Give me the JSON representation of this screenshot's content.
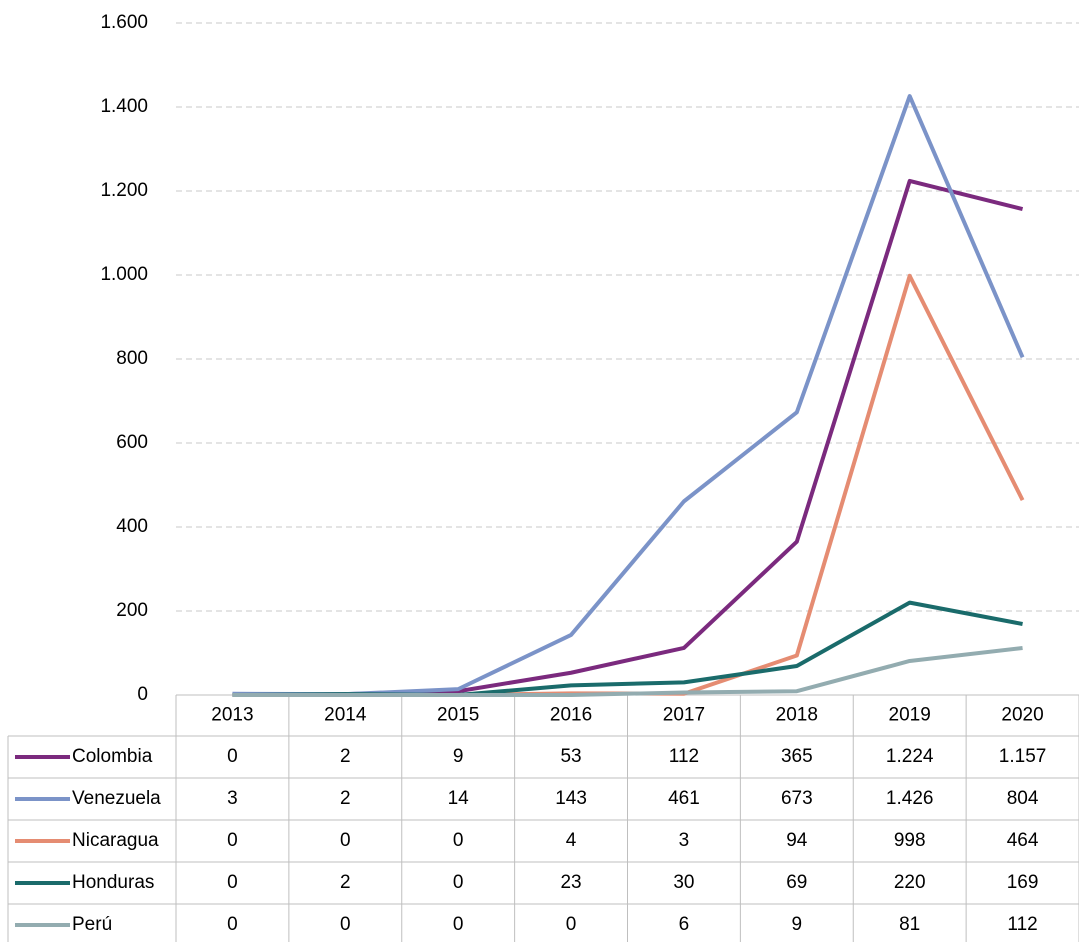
{
  "chart_data": {
    "type": "line",
    "categories": [
      "2013",
      "2014",
      "2015",
      "2016",
      "2017",
      "2018",
      "2019",
      "2020"
    ],
    "series": [
      {
        "name": "Colombia",
        "color": "#7b2a7e",
        "values": [
          0,
          2,
          9,
          53,
          112,
          365,
          1224,
          1157
        ],
        "value_labels": [
          "0",
          "2",
          "9",
          "53",
          "112",
          "365",
          "1.224",
          "1.157"
        ]
      },
      {
        "name": "Venezuela",
        "color": "#7b93c8",
        "values": [
          3,
          2,
          14,
          143,
          461,
          673,
          1426,
          804
        ],
        "value_labels": [
          "3",
          "2",
          "14",
          "143",
          "461",
          "673",
          "1.426",
          "804"
        ]
      },
      {
        "name": "Nicaragua",
        "color": "#e58c72",
        "values": [
          0,
          0,
          0,
          4,
          3,
          94,
          998,
          464
        ]
      },
      {
        "name": "Honduras",
        "color": "#1a6b6b",
        "values": [
          0,
          2,
          0,
          23,
          30,
          69,
          220,
          169
        ]
      },
      {
        "name": "Perú",
        "color": "#93acb0",
        "values": [
          0,
          0,
          0,
          0,
          6,
          9,
          81,
          112
        ]
      }
    ],
    "ylim": [
      0,
      1600
    ],
    "yticks": [
      0,
      200,
      400,
      600,
      800,
      {
        "value": 1000,
        "label": "1.000"
      },
      {
        "value": 1200,
        "label": "1.200"
      },
      {
        "value": 1400,
        "label": "1.400"
      },
      {
        "value": 1600,
        "label": "1.600"
      }
    ],
    "grid": true
  }
}
